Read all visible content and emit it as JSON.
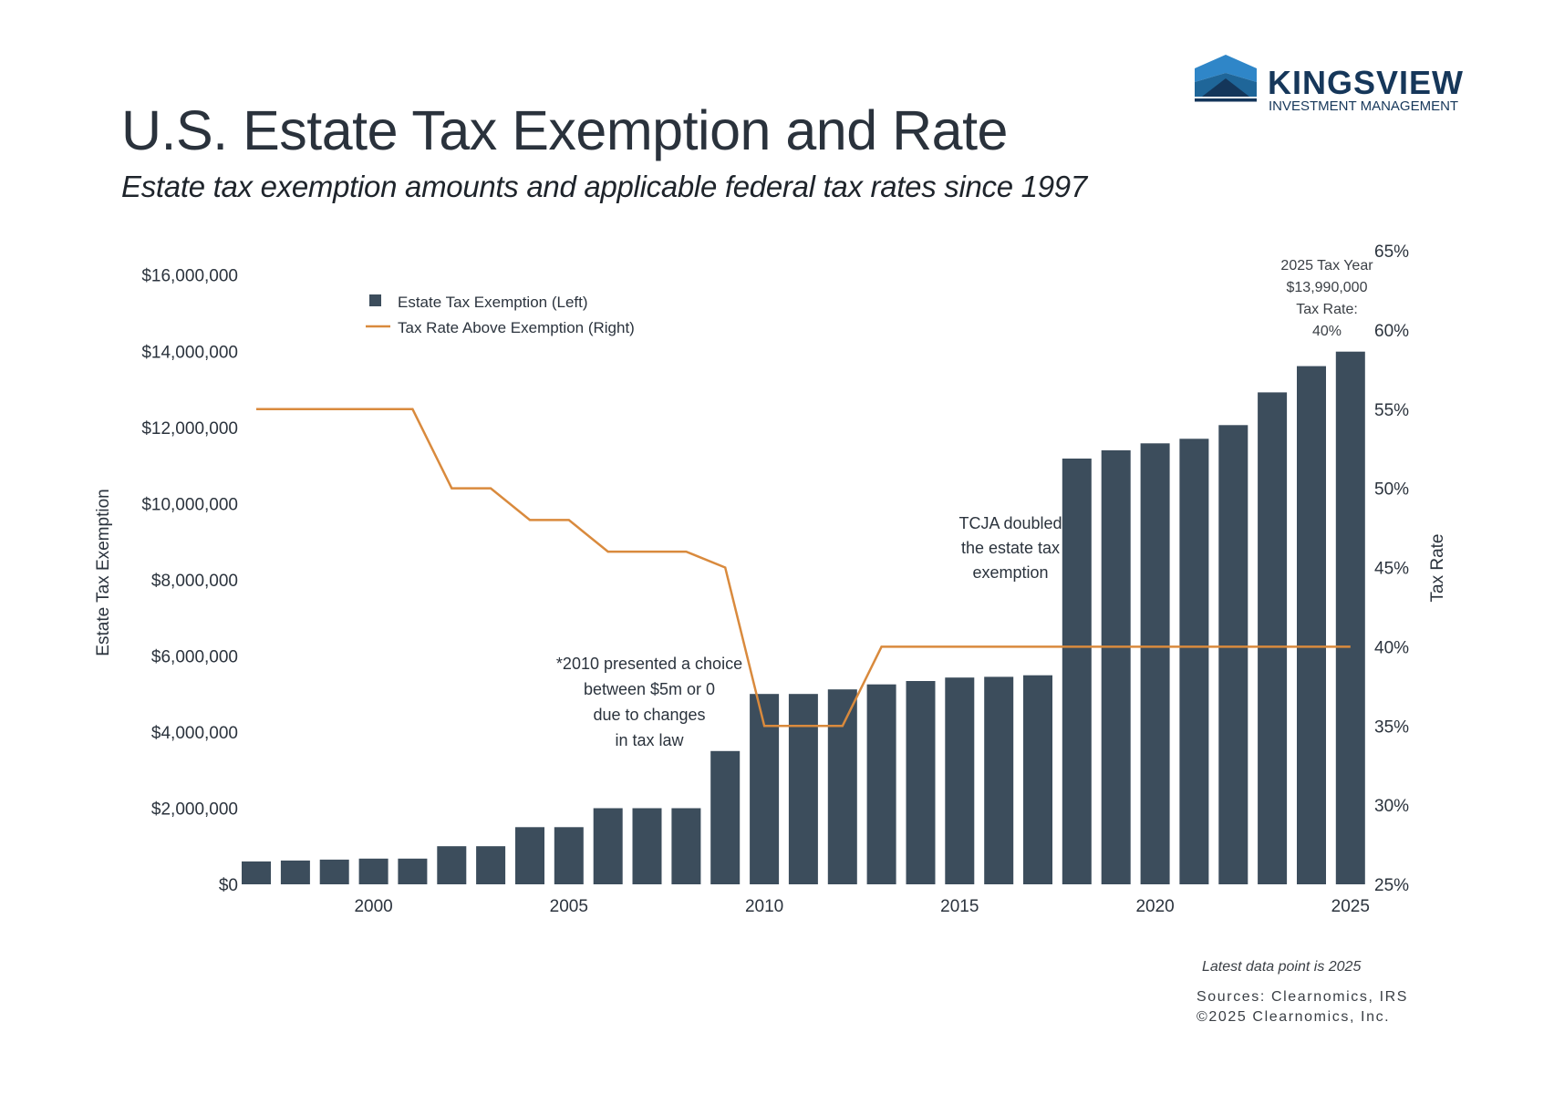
{
  "header": {
    "title": "U.S. Estate Tax Exemption and Rate",
    "subtitle": "Estate tax exemption amounts and applicable federal tax rates since 1997"
  },
  "logo": {
    "brand": "KINGSVIEW",
    "tagline": "INVESTMENT MANAGEMENT",
    "colors": {
      "light": "#2f86c8",
      "mid": "#1f6699",
      "dark": "#14365a"
    }
  },
  "footer": {
    "note": "Latest data point is 2025",
    "sources": "Sources: Clearnomics, IRS",
    "copyright": "©2025 Clearnomics, Inc."
  },
  "chart_data": {
    "type": "bar",
    "title": "U.S. Estate Tax Exemption and Rate",
    "subtitle": "Estate tax exemption amounts and applicable federal tax rates since 1997",
    "x": [
      1997,
      1998,
      1999,
      2000,
      2001,
      2002,
      2003,
      2004,
      2005,
      2006,
      2007,
      2008,
      2009,
      2010,
      2011,
      2012,
      2013,
      2014,
      2015,
      2016,
      2017,
      2018,
      2019,
      2020,
      2021,
      2022,
      2023,
      2024,
      2025
    ],
    "x_ticks": [
      "2000",
      "2005",
      "2010",
      "2015",
      "2020",
      "2025"
    ],
    "x_tick_values": [
      2000,
      2005,
      2010,
      2015,
      2020,
      2025
    ],
    "series": [
      {
        "name": "Estate Tax Exemption (Left)",
        "type": "bar",
        "axis": "left",
        "color": "#3c4d5c",
        "values": [
          600000,
          625000,
          650000,
          675000,
          675000,
          1000000,
          1000000,
          1500000,
          1500000,
          2000000,
          2000000,
          2000000,
          3500000,
          5000000,
          5000000,
          5120000,
          5250000,
          5340000,
          5430000,
          5450000,
          5490000,
          11180000,
          11400000,
          11580000,
          11700000,
          12060000,
          12920000,
          13610000,
          13990000
        ]
      },
      {
        "name": "Tax Rate Above Exemption (Right)",
        "type": "line",
        "axis": "right",
        "color": "#d98a3d",
        "values": [
          55,
          55,
          55,
          55,
          55,
          50,
          50,
          48,
          48,
          46,
          46,
          46,
          45,
          35,
          35,
          35,
          40,
          40,
          40,
          40,
          40,
          40,
          40,
          40,
          40,
          40,
          40,
          40,
          40
        ]
      }
    ],
    "ylabel": "Estate Tax Exemption",
    "ylim": [
      0,
      16640000
    ],
    "y_ticks": [
      "$0",
      "$2,000,000",
      "$4,000,000",
      "$6,000,000",
      "$8,000,000",
      "$10,000,000",
      "$12,000,000",
      "$14,000,000",
      "$16,000,000"
    ],
    "y_tick_values": [
      0,
      2000000,
      4000000,
      6000000,
      8000000,
      10000000,
      12000000,
      14000000,
      16000000
    ],
    "y2label": "Tax Rate",
    "y2lim": [
      25,
      65
    ],
    "y2_ticks": [
      "25%",
      "30%",
      "35%",
      "40%",
      "45%",
      "50%",
      "55%",
      "60%",
      "65%"
    ],
    "y2_tick_values": [
      25,
      30,
      35,
      40,
      45,
      50,
      55,
      60,
      65
    ],
    "grid": false,
    "legend": {
      "placement": "top-left",
      "entries": [
        "Estate Tax Exemption (Left)",
        "Tax Rate Above Exemption (Right)"
      ]
    },
    "annotations": [
      {
        "id": "note2010",
        "lines": [
          "*2010 presented a choice",
          "between $5m or 0",
          "due to changes",
          "in tax law"
        ]
      },
      {
        "id": "tcja",
        "lines": [
          "TCJA doubled",
          "the estate tax",
          "exemption"
        ]
      },
      {
        "id": "latest",
        "lines": [
          "2025 Tax Year",
          "$13,990,000",
          "Tax Rate:",
          "40%"
        ]
      }
    ]
  }
}
